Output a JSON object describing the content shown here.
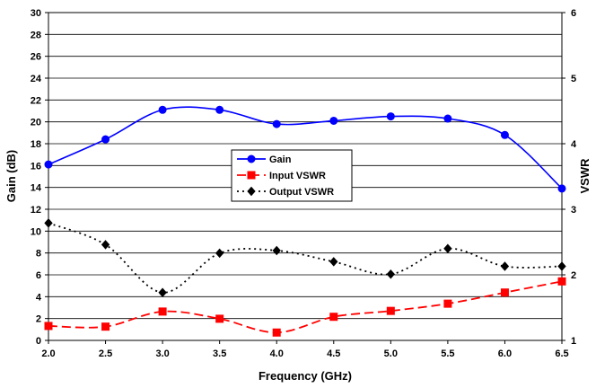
{
  "chart_data": {
    "type": "line",
    "title": "",
    "xlabel": "Frequency (GHz)",
    "ylabel": "Gain (dB)",
    "y2label": "VSWR",
    "x": [
      2.0,
      2.5,
      3.0,
      3.5,
      4.0,
      4.5,
      5.0,
      5.5,
      6.0,
      6.5
    ],
    "xticks": [
      "2.0",
      "2.5",
      "3.0",
      "3.5",
      "4.0",
      "4.5",
      "5.0",
      "5.5",
      "6.0",
      "6.5"
    ],
    "xlim": [
      2.0,
      6.5
    ],
    "ylim": [
      0,
      30
    ],
    "yticks": [
      "0",
      "2",
      "4",
      "6",
      "8",
      "10",
      "12",
      "14",
      "16",
      "18",
      "20",
      "22",
      "24",
      "26",
      "28",
      "30"
    ],
    "y2lim": [
      1,
      6
    ],
    "y2ticks": [
      "1",
      "2",
      "3",
      "4",
      "5",
      "6"
    ],
    "grid": "horizontal",
    "legend_position": "center",
    "series": [
      {
        "name": "Gain",
        "axis": "left",
        "color": "#0000ff",
        "marker": "circle",
        "line": "solid",
        "values": [
          16.1,
          18.4,
          21.1,
          21.1,
          19.8,
          20.1,
          20.5,
          20.3,
          18.8,
          13.9
        ]
      },
      {
        "name": "Input VSWR",
        "axis": "right",
        "color": "#ff0000",
        "marker": "square",
        "line": "dashed",
        "values": [
          1.22,
          1.21,
          1.44,
          1.33,
          1.12,
          1.36,
          1.45,
          1.56,
          1.73,
          1.9
        ]
      },
      {
        "name": "Output VSWR",
        "axis": "right",
        "color": "#000000",
        "marker": "diamond",
        "line": "dotted",
        "values": [
          2.79,
          2.46,
          1.73,
          2.33,
          2.37,
          2.2,
          2.01,
          2.4,
          2.13,
          2.13
        ]
      }
    ]
  }
}
